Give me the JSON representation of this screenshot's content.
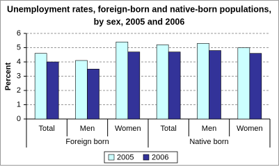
{
  "chart_data": {
    "type": "bar",
    "title": [
      "Unemployment rates,  foreign-born and native-born populations,",
      "by sex, 2005 and 2006"
    ],
    "y_label": "Percent",
    "categories": [
      "Total",
      "Men",
      "Women",
      "Total",
      "Men",
      "Women"
    ],
    "group_labels": [
      "Foreign born",
      "Native born"
    ],
    "series": [
      {
        "name": "2005",
        "color": "#ccffff",
        "values": [
          4.6,
          4.1,
          5.4,
          5.2,
          5.3,
          5.0
        ]
      },
      {
        "name": "2006",
        "color": "#333399",
        "values": [
          4.0,
          3.5,
          4.7,
          4.7,
          4.8,
          4.6
        ]
      }
    ],
    "ylim": [
      0,
      6
    ],
    "yticks": [
      0,
      1,
      2,
      3,
      4,
      5,
      6
    ],
    "grid": true
  }
}
